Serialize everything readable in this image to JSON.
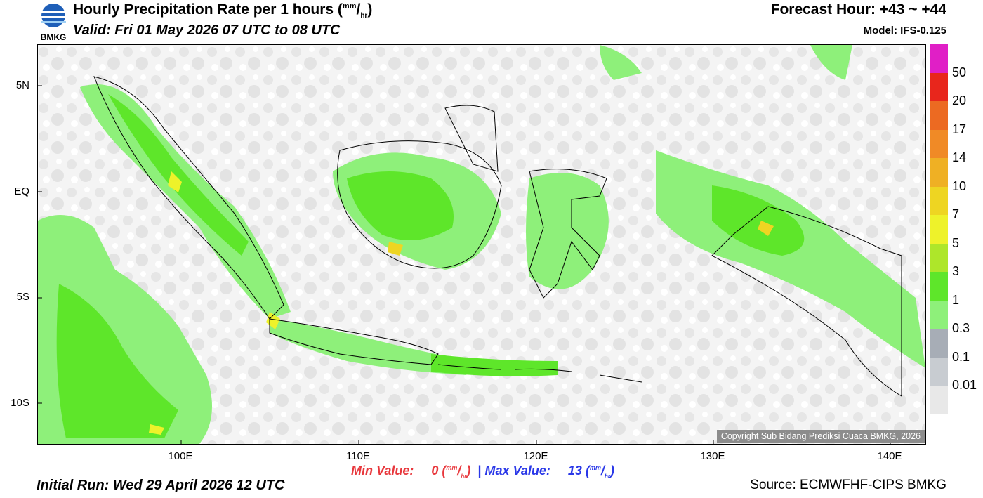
{
  "header": {
    "title": "Hourly Precipitation Rate per 1 hours",
    "title_unit_top": "mm",
    "title_unit_bottom": "hr",
    "valid": "Valid: Fri 01 May 2026 07 UTC to 08 UTC",
    "forecast_hour": "Forecast Hour: +43 ~ +44",
    "model": "Model: IFS-0.125",
    "logo_text": "BMKG"
  },
  "map": {
    "lat_labels": [
      "5N",
      "EQ",
      "5S",
      "10S"
    ],
    "lon_labels": [
      "100E",
      "110E",
      "120E",
      "130E",
      "140E"
    ],
    "copyright": "Copyright Sub Bidang Prediksi Cuaca BMKG, 2026"
  },
  "colorbar": {
    "labels": [
      "50",
      "20",
      "17",
      "14",
      "10",
      "7",
      "5",
      "3",
      "1",
      "0.3",
      "0.1",
      "0.01"
    ],
    "colors": [
      "#e01fc6",
      "#e8261c",
      "#ec6a22",
      "#f08a26",
      "#efb024",
      "#eed522",
      "#eef22a",
      "#aee62a",
      "#5ee62a",
      "#8ef07a",
      "#a7adb6",
      "#c8ccd1",
      "#e8e8e8"
    ]
  },
  "footer": {
    "min_label": "Min Value:",
    "min_value": "0",
    "max_label": "Max Value:",
    "max_value": "13",
    "separator": "|",
    "unit_top": "mm",
    "unit_bottom": "hr",
    "initial_run": "Initial Run: Wed 29 April 2026 12 UTC",
    "source": "Source: ECMWFHF-CIPS BMKG"
  }
}
